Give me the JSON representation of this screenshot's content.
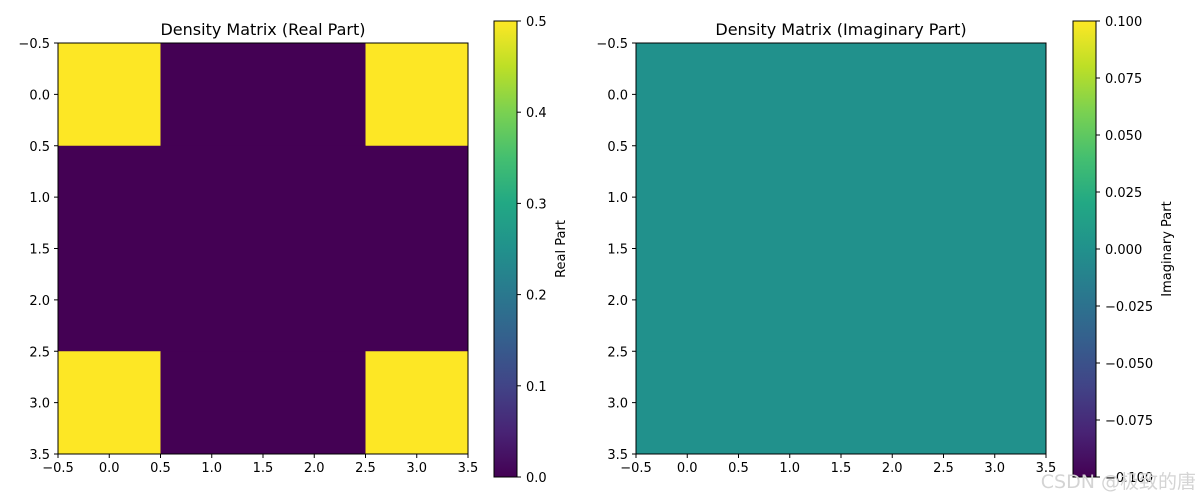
{
  "watermark": "CSDN @极致的唐",
  "chart_data": [
    {
      "type": "heatmap",
      "title": "Density Matrix (Real Part)",
      "xlabel": "",
      "ylabel": "",
      "x_ticks": [
        -0.5,
        0.0,
        0.5,
        1.0,
        1.5,
        2.0,
        2.5,
        3.0,
        3.5
      ],
      "y_ticks": [
        -0.5,
        0.0,
        0.5,
        1.0,
        1.5,
        2.0,
        2.5,
        3.0,
        3.5
      ],
      "x_tick_labels": [
        "−0.5",
        "0.0",
        "0.5",
        "1.0",
        "1.5",
        "2.0",
        "2.5",
        "3.0",
        "3.5"
      ],
      "y_tick_labels": [
        "−0.5",
        "0.0",
        "0.5",
        "1.0",
        "1.5",
        "2.0",
        "2.5",
        "3.0",
        "3.5"
      ],
      "xlim": [
        -0.5,
        3.5
      ],
      "ylim": [
        3.5,
        -0.5
      ],
      "values": [
        [
          0.5,
          0.0,
          0.0,
          0.5
        ],
        [
          0.0,
          0.0,
          0.0,
          0.0
        ],
        [
          0.0,
          0.0,
          0.0,
          0.0
        ],
        [
          0.5,
          0.0,
          0.0,
          0.5
        ]
      ],
      "colormap": "viridis",
      "colorbar": {
        "label": "Real Part",
        "range": [
          0.0,
          0.5
        ],
        "ticks": [
          0.0,
          0.1,
          0.2,
          0.3,
          0.4,
          0.5
        ],
        "tick_labels": [
          "0.0",
          "0.1",
          "0.2",
          "0.3",
          "0.4",
          "0.5"
        ]
      }
    },
    {
      "type": "heatmap",
      "title": "Density Matrix (Imaginary Part)",
      "xlabel": "",
      "ylabel": "",
      "x_ticks": [
        -0.5,
        0.0,
        0.5,
        1.0,
        1.5,
        2.0,
        2.5,
        3.0,
        3.5
      ],
      "y_ticks": [
        -0.5,
        0.0,
        0.5,
        1.0,
        1.5,
        2.0,
        2.5,
        3.0,
        3.5
      ],
      "x_tick_labels": [
        "−0.5",
        "0.0",
        "0.5",
        "1.0",
        "1.5",
        "2.0",
        "2.5",
        "3.0",
        "3.5"
      ],
      "y_tick_labels": [
        "−0.5",
        "0.0",
        "0.5",
        "1.0",
        "1.5",
        "2.0",
        "2.5",
        "3.0",
        "3.5"
      ],
      "xlim": [
        -0.5,
        3.5
      ],
      "ylim": [
        3.5,
        -0.5
      ],
      "values": [
        [
          0.0,
          0.0,
          0.0,
          0.0
        ],
        [
          0.0,
          0.0,
          0.0,
          0.0
        ],
        [
          0.0,
          0.0,
          0.0,
          0.0
        ],
        [
          0.0,
          0.0,
          0.0,
          0.0
        ]
      ],
      "colormap": "viridis",
      "colorbar": {
        "label": "Imaginary Part",
        "range": [
          -0.1,
          0.1
        ],
        "ticks": [
          -0.1,
          -0.075,
          -0.05,
          -0.025,
          0.0,
          0.025,
          0.05,
          0.075,
          0.1
        ],
        "tick_labels": [
          "−0.100",
          "−0.075",
          "−0.050",
          "−0.025",
          "0.000",
          "0.025",
          "0.050",
          "0.075",
          "0.100"
        ]
      }
    }
  ]
}
